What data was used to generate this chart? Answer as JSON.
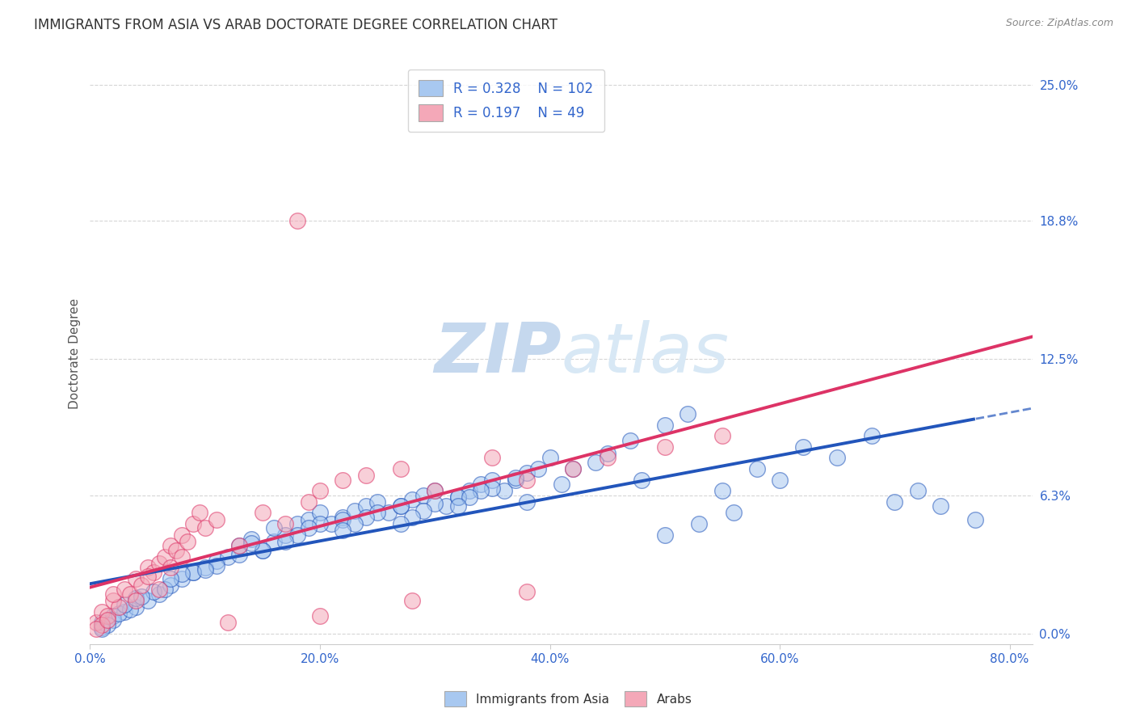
{
  "title": "IMMIGRANTS FROM ASIA VS ARAB DOCTORATE DEGREE CORRELATION CHART",
  "source": "Source: ZipAtlas.com",
  "xlabel_ticks": [
    "0.0%",
    "20.0%",
    "40.0%",
    "60.0%",
    "80.0%"
  ],
  "xlabel_tick_vals": [
    0.0,
    0.2,
    0.4,
    0.6,
    0.8
  ],
  "ylabel": "Doctorate Degree",
  "ylabel_ticks": [
    "0.0%",
    "6.3%",
    "12.5%",
    "18.8%",
    "25.0%"
  ],
  "ylabel_tick_vals": [
    0.0,
    0.063,
    0.125,
    0.188,
    0.25
  ],
  "xlim": [
    0.0,
    0.82
  ],
  "ylim": [
    -0.005,
    0.26
  ],
  "grid_color": "#cccccc",
  "watermark_zip": "ZIP",
  "watermark_atlas": "atlas",
  "legend_R_asia": "0.328",
  "legend_N_asia": "102",
  "legend_R_arab": "0.197",
  "legend_N_arab": "49",
  "asia_color": "#a8c8f0",
  "arab_color": "#f4a8b8",
  "asia_line_color": "#2255bb",
  "arab_line_color": "#dd3366",
  "asia_scatter_x": [
    0.01,
    0.02,
    0.01,
    0.03,
    0.04,
    0.02,
    0.015,
    0.025,
    0.035,
    0.01,
    0.05,
    0.06,
    0.03,
    0.04,
    0.055,
    0.07,
    0.065,
    0.08,
    0.045,
    0.09,
    0.1,
    0.11,
    0.09,
    0.12,
    0.13,
    0.14,
    0.11,
    0.1,
    0.08,
    0.07,
    0.15,
    0.16,
    0.17,
    0.15,
    0.18,
    0.19,
    0.2,
    0.16,
    0.14,
    0.13,
    0.21,
    0.22,
    0.23,
    0.2,
    0.24,
    0.25,
    0.22,
    0.19,
    0.18,
    0.17,
    0.26,
    0.27,
    0.28,
    0.25,
    0.29,
    0.3,
    0.27,
    0.24,
    0.23,
    0.22,
    0.31,
    0.32,
    0.33,
    0.3,
    0.34,
    0.35,
    0.32,
    0.29,
    0.28,
    0.27,
    0.36,
    0.37,
    0.38,
    0.35,
    0.39,
    0.4,
    0.37,
    0.34,
    0.33,
    0.32,
    0.42,
    0.45,
    0.47,
    0.5,
    0.52,
    0.55,
    0.48,
    0.44,
    0.41,
    0.38,
    0.58,
    0.62,
    0.65,
    0.68,
    0.7,
    0.72,
    0.6,
    0.56,
    0.53,
    0.5,
    0.74,
    0.77
  ],
  "asia_scatter_y": [
    0.005,
    0.008,
    0.003,
    0.01,
    0.012,
    0.006,
    0.004,
    0.009,
    0.011,
    0.002,
    0.015,
    0.018,
    0.013,
    0.016,
    0.019,
    0.022,
    0.02,
    0.025,
    0.017,
    0.028,
    0.03,
    0.033,
    0.028,
    0.035,
    0.04,
    0.043,
    0.031,
    0.029,
    0.027,
    0.025,
    0.038,
    0.042,
    0.045,
    0.038,
    0.05,
    0.052,
    0.055,
    0.048,
    0.041,
    0.036,
    0.05,
    0.053,
    0.056,
    0.05,
    0.058,
    0.06,
    0.052,
    0.048,
    0.045,
    0.042,
    0.055,
    0.058,
    0.061,
    0.055,
    0.063,
    0.065,
    0.058,
    0.053,
    0.05,
    0.047,
    0.058,
    0.062,
    0.065,
    0.059,
    0.068,
    0.07,
    0.062,
    0.056,
    0.053,
    0.05,
    0.065,
    0.07,
    0.073,
    0.066,
    0.075,
    0.08,
    0.071,
    0.065,
    0.062,
    0.058,
    0.075,
    0.082,
    0.088,
    0.095,
    0.1,
    0.065,
    0.07,
    0.078,
    0.068,
    0.06,
    0.075,
    0.085,
    0.08,
    0.09,
    0.06,
    0.065,
    0.07,
    0.055,
    0.05,
    0.045,
    0.058,
    0.052
  ],
  "arab_scatter_x": [
    0.005,
    0.01,
    0.015,
    0.02,
    0.025,
    0.01,
    0.005,
    0.02,
    0.03,
    0.015,
    0.04,
    0.05,
    0.035,
    0.045,
    0.055,
    0.06,
    0.05,
    0.065,
    0.04,
    0.07,
    0.08,
    0.09,
    0.075,
    0.085,
    0.095,
    0.1,
    0.08,
    0.07,
    0.06,
    0.11,
    0.13,
    0.15,
    0.17,
    0.19,
    0.2,
    0.22,
    0.24,
    0.27,
    0.3,
    0.35,
    0.38,
    0.42,
    0.45,
    0.5,
    0.55,
    0.38,
    0.28,
    0.2,
    0.12
  ],
  "arab_scatter_y": [
    0.005,
    0.01,
    0.008,
    0.015,
    0.012,
    0.004,
    0.002,
    0.018,
    0.02,
    0.006,
    0.025,
    0.03,
    0.018,
    0.022,
    0.028,
    0.032,
    0.026,
    0.035,
    0.015,
    0.04,
    0.045,
    0.05,
    0.038,
    0.042,
    0.055,
    0.048,
    0.035,
    0.03,
    0.02,
    0.052,
    0.04,
    0.055,
    0.05,
    0.06,
    0.065,
    0.07,
    0.072,
    0.075,
    0.065,
    0.08,
    0.07,
    0.075,
    0.08,
    0.085,
    0.09,
    0.019,
    0.015,
    0.008,
    0.005
  ],
  "arab_outlier_x": [
    0.18
  ],
  "arab_outlier_y": [
    0.188
  ],
  "background_color": "#ffffff",
  "title_color": "#333333",
  "title_fontsize": 12,
  "axis_label_color": "#555555",
  "tick_color": "#3366cc",
  "source_color": "#888888",
  "watermark_color_zip": "#c5d8ee",
  "watermark_color_atlas": "#d8e8f5",
  "watermark_fontsize": 62
}
